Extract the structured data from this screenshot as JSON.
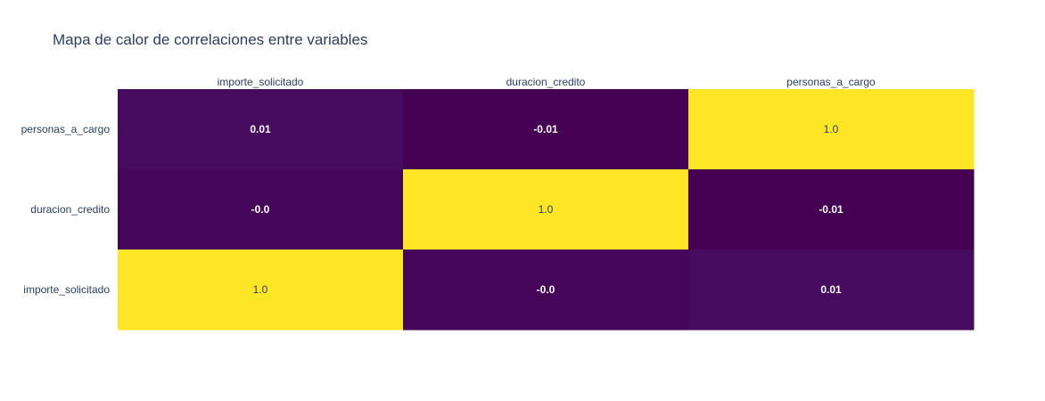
{
  "chart_data": {
    "type": "heatmap",
    "title": "Mapa de calor de correlaciones entre variables",
    "x_categories": [
      "importe_solicitado",
      "duracion_credito",
      "personas_a_cargo"
    ],
    "y_categories": [
      "personas_a_cargo",
      "duracion_credito",
      "importe_solicitado"
    ],
    "values": [
      [
        0.01,
        -0.01,
        1.0
      ],
      [
        -0.0,
        1.0,
        -0.01
      ],
      [
        1.0,
        -0.0,
        0.01
      ]
    ],
    "cell_labels": [
      [
        "0.01",
        "-0.01",
        "1.0"
      ],
      [
        "-0.0",
        "1.0",
        "-0.01"
      ],
      [
        "1.0",
        "-0.0",
        "0.01"
      ]
    ],
    "x_axis_side": "top",
    "colorscale": "viridis",
    "colors": {
      "low": "#440154",
      "low_plus": "#460b5e",
      "high": "#fde725",
      "text_light": "#ffffff",
      "text_dark": "#2a3f5f"
    }
  }
}
